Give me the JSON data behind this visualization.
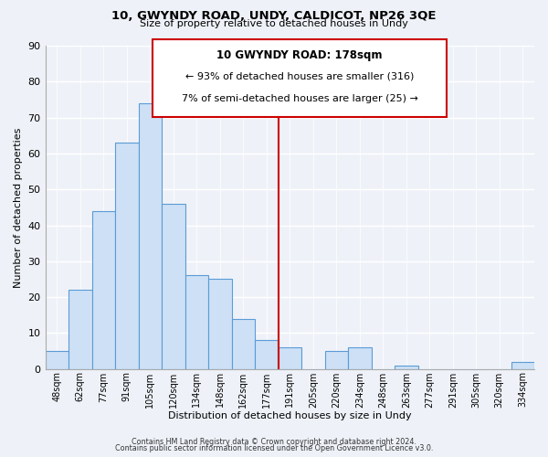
{
  "title": "10, GWYNDY ROAD, UNDY, CALDICOT, NP26 3QE",
  "subtitle": "Size of property relative to detached houses in Undy",
  "xlabel": "Distribution of detached houses by size in Undy",
  "ylabel": "Number of detached properties",
  "bar_labels": [
    "48sqm",
    "62sqm",
    "77sqm",
    "91sqm",
    "105sqm",
    "120sqm",
    "134sqm",
    "148sqm",
    "162sqm",
    "177sqm",
    "191sqm",
    "205sqm",
    "220sqm",
    "234sqm",
    "248sqm",
    "263sqm",
    "277sqm",
    "291sqm",
    "305sqm",
    "320sqm",
    "334sqm"
  ],
  "bar_values": [
    5,
    22,
    44,
    63,
    74,
    46,
    26,
    25,
    14,
    8,
    6,
    0,
    5,
    6,
    0,
    1,
    0,
    0,
    0,
    0,
    2
  ],
  "bar_color": "#cde0f5",
  "bar_edge_color": "#5b9bd5",
  "vline_color": "#cc0000",
  "ylim": [
    0,
    90
  ],
  "yticks": [
    0,
    10,
    20,
    30,
    40,
    50,
    60,
    70,
    80,
    90
  ],
  "annotation_title": "10 GWYNDY ROAD: 178sqm",
  "annotation_line1": "← 93% of detached houses are smaller (316)",
  "annotation_line2": "7% of semi-detached houses are larger (25) →",
  "footer_line1": "Contains HM Land Registry data © Crown copyright and database right 2024.",
  "footer_line2": "Contains public sector information licensed under the Open Government Licence v3.0.",
  "background_color": "#eef2f8",
  "plot_bg_color": "#eef2f8",
  "grid_color": "#ffffff",
  "spine_color": "#aaaaaa"
}
